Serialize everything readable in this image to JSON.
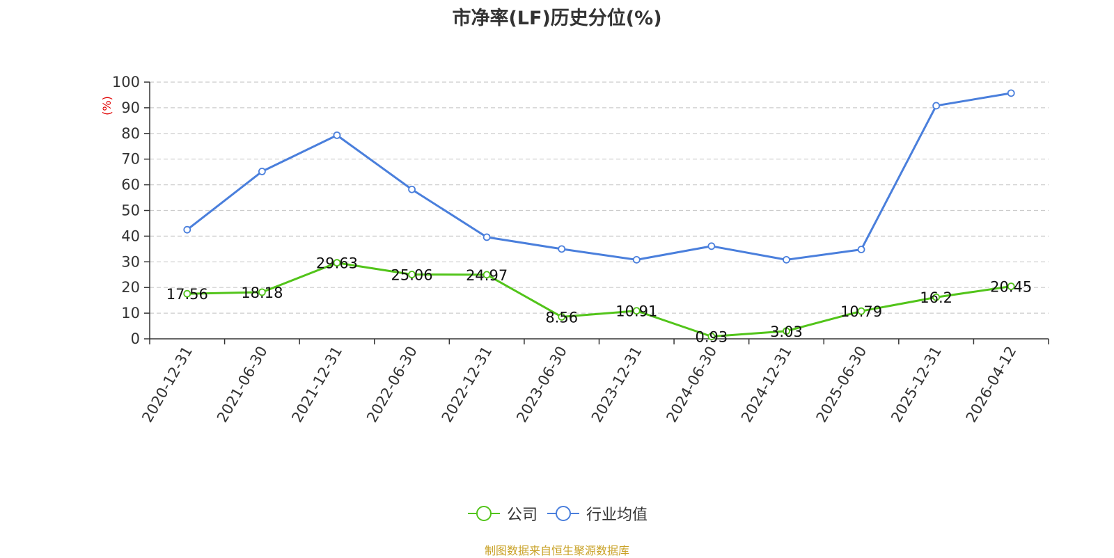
{
  "colors": {
    "company": "#52c41a",
    "industry": "#4a7fdc",
    "axis": "#333333",
    "grid": "#cccccc",
    "unit": "#e00000",
    "source": "#c9a227"
  },
  "chart_data": {
    "type": "line",
    "title": "市净率(LF)历史分位(%)",
    "ylabel": "(%)",
    "ylim": [
      0,
      100
    ],
    "yticks": [
      0,
      10,
      20,
      30,
      40,
      50,
      60,
      70,
      80,
      90,
      100
    ],
    "grid": true,
    "legend_position": "bottom",
    "categories": [
      "2020-12-31",
      "2021-06-30",
      "2021-12-31",
      "2022-06-30",
      "2022-12-31",
      "2023-06-30",
      "2023-12-31",
      "2024-06-30",
      "2024-12-31",
      "2025-06-30",
      "2025-12-31",
      "2026-04-12"
    ],
    "series": [
      {
        "name": "公司",
        "values": [
          17.56,
          18.18,
          29.63,
          25.06,
          24.97,
          8.56,
          10.91,
          0.93,
          3.03,
          10.79,
          16.2,
          20.45
        ],
        "labels": [
          "17.56",
          "18.18",
          "29.63",
          "25.06",
          "24.97",
          "8.56",
          "10.91",
          "0.93",
          "3.03",
          "10.79",
          "16.2",
          "20.45"
        ],
        "show_labels": true
      },
      {
        "name": "行业均值",
        "values": [
          42.5,
          65.2,
          79.3,
          58.2,
          39.6,
          35.0,
          30.8,
          36.1,
          30.8,
          34.8,
          90.8,
          95.7
        ],
        "show_labels": false
      }
    ]
  },
  "source_note": "制图数据来自恒生聚源数据库"
}
